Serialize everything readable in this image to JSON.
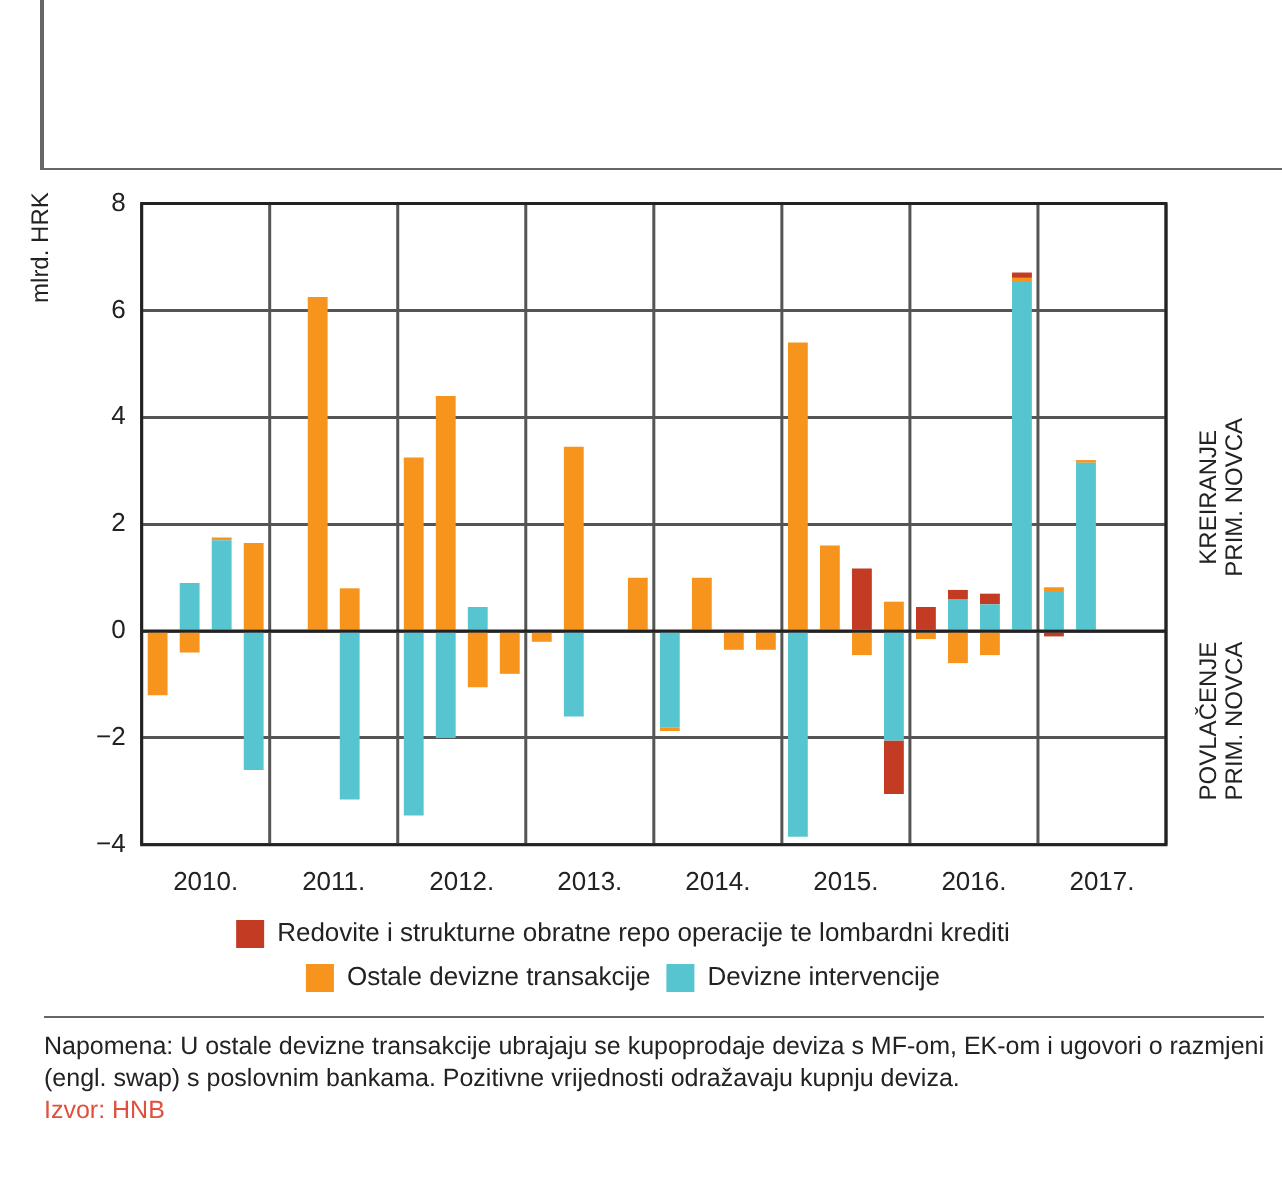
{
  "chart_data": {
    "type": "bar",
    "stacked": true,
    "ylabel": "mlrd. HRK",
    "x": [
      2010.125,
      2010.375,
      2010.625,
      2010.875,
      2011.125,
      2011.375,
      2011.625,
      2011.875,
      2012.125,
      2012.375,
      2012.625,
      2012.875,
      2013.125,
      2013.375,
      2013.625,
      2013.875,
      2014.125,
      2014.375,
      2014.625,
      2014.875,
      2015.125,
      2015.375,
      2015.625,
      2015.875,
      2016.125,
      2016.375,
      2016.625,
      2016.875,
      2017.125,
      2017.375
    ],
    "xlim": [
      2010,
      2018
    ],
    "xticks": [
      {
        "value": 2010,
        "label": null
      },
      {
        "value": 2010.5,
        "label": "2010."
      },
      {
        "value": 2011,
        "label": null
      },
      {
        "value": 2011.5,
        "label": "2011."
      },
      {
        "value": 2012,
        "label": null
      },
      {
        "value": 2012.5,
        "label": "2012."
      },
      {
        "value": 2013,
        "label": null
      },
      {
        "value": 2013.5,
        "label": "2013."
      },
      {
        "value": 2014,
        "label": null
      },
      {
        "value": 2014.5,
        "label": "2014."
      },
      {
        "value": 2015,
        "label": null
      },
      {
        "value": 2015.5,
        "label": "2015."
      },
      {
        "value": 2016,
        "label": null
      },
      {
        "value": 2016.5,
        "label": "2016."
      },
      {
        "value": 2017,
        "label": null
      },
      {
        "value": 2017.5,
        "label": "2017."
      },
      {
        "value": 2018,
        "label": null
      }
    ],
    "ylim": [
      -4,
      8
    ],
    "yticks": [
      -4,
      -2,
      0,
      2,
      4,
      6,
      8
    ],
    "grid": true,
    "legend": "bottom",
    "series": [
      {
        "name": "Devizne intervencije",
        "color": "#56c5d0",
        "values": [
          null,
          0.9,
          1.7,
          -2.6,
          null,
          null,
          -3.15,
          null,
          -3.45,
          -2.0,
          0.45,
          null,
          null,
          -1.6,
          null,
          null,
          -1.8,
          null,
          null,
          null,
          -3.85,
          null,
          null,
          -2.05,
          null,
          0.6,
          0.5,
          6.55,
          0.75,
          3.15
        ]
      },
      {
        "name": "Ostale devizne transakcije",
        "color": "#f7941d",
        "values": [
          -1.2,
          -0.4,
          0.05,
          1.65,
          null,
          6.25,
          0.8,
          null,
          3.25,
          4.4,
          -1.05,
          -0.8,
          -0.2,
          3.45,
          null,
          1.0,
          -0.07,
          1.0,
          -0.35,
          -0.35,
          5.4,
          1.6,
          -0.45,
          0.55,
          -0.15,
          -0.6,
          -0.45,
          0.06,
          0.07,
          0.05
        ]
      },
      {
        "name": "Redovite i strukturne obratne repo operacije te lombardni krediti",
        "color": "#c23b22",
        "values": [
          null,
          null,
          null,
          null,
          null,
          null,
          null,
          null,
          null,
          null,
          null,
          null,
          null,
          null,
          null,
          null,
          null,
          null,
          null,
          null,
          null,
          null,
          1.17,
          -1.0,
          0.45,
          0.17,
          0.2,
          0.1,
          -0.1,
          null
        ]
      }
    ],
    "annotations": [
      "KREIRANJE\nPRIM. NOVCA",
      "POVLAČENJE\nPRIM. NOVCA",
      "Napomena: U ostale devizne transakcije ubrajaju se kupoprodaje deviza s MF-om, EK-om i ugovori o razmjeni (engl. swap) s poslovnim bankama. Pozitivne vrijednosti odražavaju kupnju deviza.",
      "Izvor: HNB"
    ]
  }
}
